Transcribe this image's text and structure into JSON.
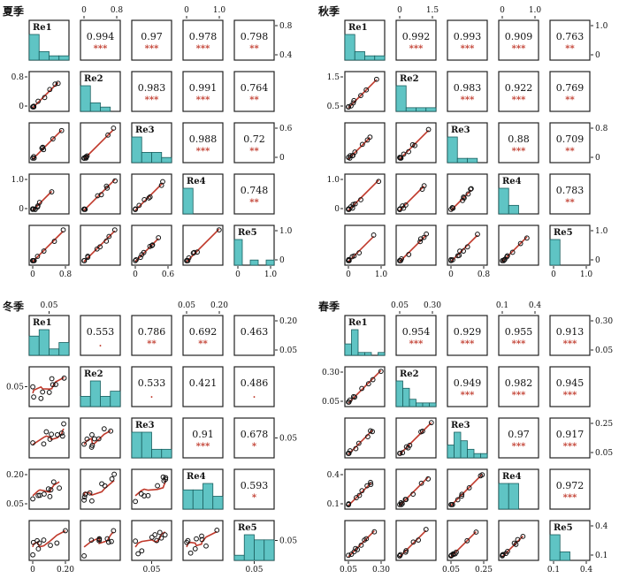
{
  "chart_data": [
    {
      "type": "scatter-matrix",
      "title": "夏季",
      "variables": [
        "Re1",
        "Re2",
        "Re3",
        "Re4",
        "Re5"
      ],
      "correlations": [
        {
          "row": 0,
          "col": 1,
          "r": "0.994",
          "sig": "***"
        },
        {
          "row": 0,
          "col": 2,
          "r": "0.97",
          "sig": "***"
        },
        {
          "row": 0,
          "col": 3,
          "r": "0.978",
          "sig": "***"
        },
        {
          "row": 0,
          "col": 4,
          "r": "0.798",
          "sig": "**"
        },
        {
          "row": 1,
          "col": 2,
          "r": "0.983",
          "sig": "***"
        },
        {
          "row": 1,
          "col": 3,
          "r": "0.991",
          "sig": "***"
        },
        {
          "row": 1,
          "col": 4,
          "r": "0.764",
          "sig": "**"
        },
        {
          "row": 2,
          "col": 3,
          "r": "0.988",
          "sig": "***"
        },
        {
          "row": 2,
          "col": 4,
          "r": "0.72",
          "sig": "**"
        },
        {
          "row": 3,
          "col": 4,
          "r": "0.748",
          "sig": "**"
        }
      ],
      "hist": [
        [
          6,
          2,
          1,
          1
        ],
        [
          6,
          2,
          1,
          0
        ],
        [
          5,
          2,
          2,
          1
        ],
        [
          5,
          0,
          0,
          0
        ],
        [
          5,
          0,
          1,
          0,
          1
        ]
      ],
      "axis_ticks": {
        "top": [
          {
            "col": 1,
            "ticks": [
              "0",
              "0.8"
            ]
          },
          {
            "col": 3,
            "ticks": [
              "0",
              "1.0"
            ]
          }
        ],
        "right": [
          {
            "row": 0,
            "ticks": [
              "0.8",
              "0.4"
            ]
          },
          {
            "row": 2,
            "ticks": [
              "0.6",
              "0"
            ]
          },
          {
            "row": 4,
            "ticks": [
              "1.0",
              "0"
            ]
          }
        ],
        "left": [
          {
            "row": 1,
            "ticks": [
              "0.8",
              "0"
            ]
          },
          {
            "row": 3,
            "ticks": [
              "1.0",
              "0"
            ]
          }
        ],
        "bottom": [
          {
            "col": 0,
            "ticks": [
              "0",
              "0.8"
            ]
          },
          {
            "col": 2,
            "ticks": [
              "0",
              "0.6"
            ]
          },
          {
            "col": 4,
            "ticks": [
              "0",
              "1.0"
            ]
          }
        ]
      }
    },
    {
      "type": "scatter-matrix",
      "title": "秋季",
      "variables": [
        "Re1",
        "Re2",
        "Re3",
        "Re4",
        "Re5"
      ],
      "correlations": [
        {
          "row": 0,
          "col": 1,
          "r": "0.992",
          "sig": "***"
        },
        {
          "row": 0,
          "col": 2,
          "r": "0.993",
          "sig": "***"
        },
        {
          "row": 0,
          "col": 3,
          "r": "0.909",
          "sig": "***"
        },
        {
          "row": 0,
          "col": 4,
          "r": "0.763",
          "sig": "**"
        },
        {
          "row": 1,
          "col": 2,
          "r": "0.983",
          "sig": "***"
        },
        {
          "row": 1,
          "col": 3,
          "r": "0.922",
          "sig": "***"
        },
        {
          "row": 1,
          "col": 4,
          "r": "0.769",
          "sig": "**"
        },
        {
          "row": 2,
          "col": 3,
          "r": "0.88",
          "sig": "***"
        },
        {
          "row": 2,
          "col": 4,
          "r": "0.709",
          "sig": "**"
        },
        {
          "row": 3,
          "col": 4,
          "r": "0.783",
          "sig": "**"
        }
      ],
      "hist": [
        [
          6,
          2,
          1,
          1
        ],
        [
          7,
          1,
          1,
          1
        ],
        [
          6,
          1,
          1,
          0
        ],
        [
          6,
          2,
          0,
          0
        ],
        [
          7,
          0,
          0,
          0
        ]
      ],
      "axis_ticks": {
        "top": [
          {
            "col": 1,
            "ticks": [
              "0",
              "1.5"
            ]
          },
          {
            "col": 3,
            "ticks": [
              "0",
              "1.0"
            ]
          }
        ],
        "right": [
          {
            "row": 0,
            "ticks": [
              "1.0",
              "0"
            ]
          },
          {
            "row": 2,
            "ticks": [
              "0.8",
              "0"
            ]
          },
          {
            "row": 4,
            "ticks": [
              "1.0",
              "0"
            ]
          }
        ],
        "left": [
          {
            "row": 1,
            "ticks": [
              "1.5",
              "0.5"
            ]
          },
          {
            "row": 3,
            "ticks": [
              "1.0",
              "0"
            ]
          }
        ],
        "bottom": [
          {
            "col": 0,
            "ticks": [
              "0",
              "1.0"
            ]
          },
          {
            "col": 2,
            "ticks": [
              "0",
              "0.8"
            ]
          },
          {
            "col": 4,
            "ticks": [
              "0",
              "1.0"
            ]
          }
        ]
      }
    },
    {
      "type": "scatter-matrix",
      "title": "冬季",
      "variables": [
        "Re1",
        "Re2",
        "Re3",
        "Re4",
        "Re5"
      ],
      "correlations": [
        {
          "row": 0,
          "col": 1,
          "r": "0.553",
          "sig": "."
        },
        {
          "row": 0,
          "col": 2,
          "r": "0.786",
          "sig": "**"
        },
        {
          "row": 0,
          "col": 3,
          "r": "0.692",
          "sig": "**"
        },
        {
          "row": 0,
          "col": 4,
          "r": "0.463",
          "sig": ""
        },
        {
          "row": 1,
          "col": 2,
          "r": "0.533",
          "sig": "."
        },
        {
          "row": 1,
          "col": 3,
          "r": "0.421",
          "sig": ""
        },
        {
          "row": 1,
          "col": 4,
          "r": "0.486",
          "sig": "."
        },
        {
          "row": 2,
          "col": 3,
          "r": "0.91",
          "sig": "***"
        },
        {
          "row": 2,
          "col": 4,
          "r": "0.678",
          "sig": "*"
        },
        {
          "row": 3,
          "col": 4,
          "r": "0.593",
          "sig": "*"
        }
      ],
      "hist": [
        [
          3,
          4,
          1,
          2
        ],
        [
          2,
          5,
          2,
          3
        ],
        [
          3,
          3,
          1,
          1
        ],
        [
          3,
          3,
          4,
          2
        ],
        [
          1,
          5,
          4,
          4
        ]
      ],
      "axis_ticks": {
        "top": [
          {
            "col": 0,
            "ticks": [
              "0.05"
            ]
          },
          {
            "col": 3,
            "ticks": [
              "0.05",
              "0.20"
            ]
          }
        ],
        "right": [
          {
            "row": 0,
            "ticks": [
              "0.20",
              "0.05"
            ]
          },
          {
            "row": 2,
            "ticks": [
              "0.05"
            ]
          },
          {
            "row": 4,
            "ticks": [
              "0.05"
            ]
          }
        ],
        "left": [
          {
            "row": 1,
            "ticks": [
              "0.05"
            ]
          },
          {
            "row": 3,
            "ticks": [
              "0.20",
              "0.05"
            ]
          }
        ],
        "bottom": [
          {
            "col": 0,
            "ticks": [
              "0",
              "0.20"
            ]
          },
          {
            "col": 2,
            "ticks": [
              "0.05"
            ]
          },
          {
            "col": 4,
            "ticks": [
              "0.05"
            ]
          }
        ]
      }
    },
    {
      "type": "scatter-matrix",
      "title": "春季",
      "variables": [
        "Re1",
        "Re2",
        "Re3",
        "Re4",
        "Re5"
      ],
      "correlations": [
        {
          "row": 0,
          "col": 1,
          "r": "0.954",
          "sig": "***"
        },
        {
          "row": 0,
          "col": 2,
          "r": "0.929",
          "sig": "***"
        },
        {
          "row": 0,
          "col": 3,
          "r": "0.955",
          "sig": "***"
        },
        {
          "row": 0,
          "col": 4,
          "r": "0.913",
          "sig": "***"
        },
        {
          "row": 1,
          "col": 2,
          "r": "0.949",
          "sig": "***"
        },
        {
          "row": 1,
          "col": 3,
          "r": "0.982",
          "sig": "***"
        },
        {
          "row": 1,
          "col": 4,
          "r": "0.945",
          "sig": "***"
        },
        {
          "row": 2,
          "col": 3,
          "r": "0.97",
          "sig": "***"
        },
        {
          "row": 2,
          "col": 4,
          "r": "0.917",
          "sig": "***"
        },
        {
          "row": 3,
          "col": 4,
          "r": "0.972",
          "sig": "***"
        }
      ],
      "hist": [
        [
          4,
          9,
          1,
          1,
          0,
          1
        ],
        [
          7,
          5,
          2,
          1,
          1,
          1
        ],
        [
          3,
          6,
          4,
          2,
          1,
          1
        ],
        [
          5,
          5,
          0,
          0
        ],
        [
          6,
          2,
          0,
          0
        ]
      ],
      "axis_ticks": {
        "top": [
          {
            "col": 1,
            "ticks": [
              "0.05",
              "0.30"
            ]
          },
          {
            "col": 3,
            "ticks": [
              "0.1",
              "0.4"
            ]
          }
        ],
        "right": [
          {
            "row": 0,
            "ticks": [
              "0.30",
              "0.05"
            ]
          },
          {
            "row": 2,
            "ticks": [
              "0.25",
              "0.05"
            ]
          },
          {
            "row": 4,
            "ticks": [
              "0.4",
              "0.1"
            ]
          }
        ],
        "left": [
          {
            "row": 1,
            "ticks": [
              "0.30",
              "0.05"
            ]
          },
          {
            "row": 3,
            "ticks": [
              "0.4",
              "0.1"
            ]
          }
        ],
        "bottom": [
          {
            "col": 0,
            "ticks": [
              "0.05",
              "0.30"
            ]
          },
          {
            "col": 2,
            "ticks": [
              "0.05",
              "0.25"
            ]
          },
          {
            "col": 4,
            "ticks": [
              "0.1",
              "0.4"
            ]
          }
        ]
      }
    }
  ],
  "colors": {
    "hist_fill": "#5fc4c4",
    "line": "#c0392b",
    "points": "#111111",
    "stars": "#c0392b"
  }
}
